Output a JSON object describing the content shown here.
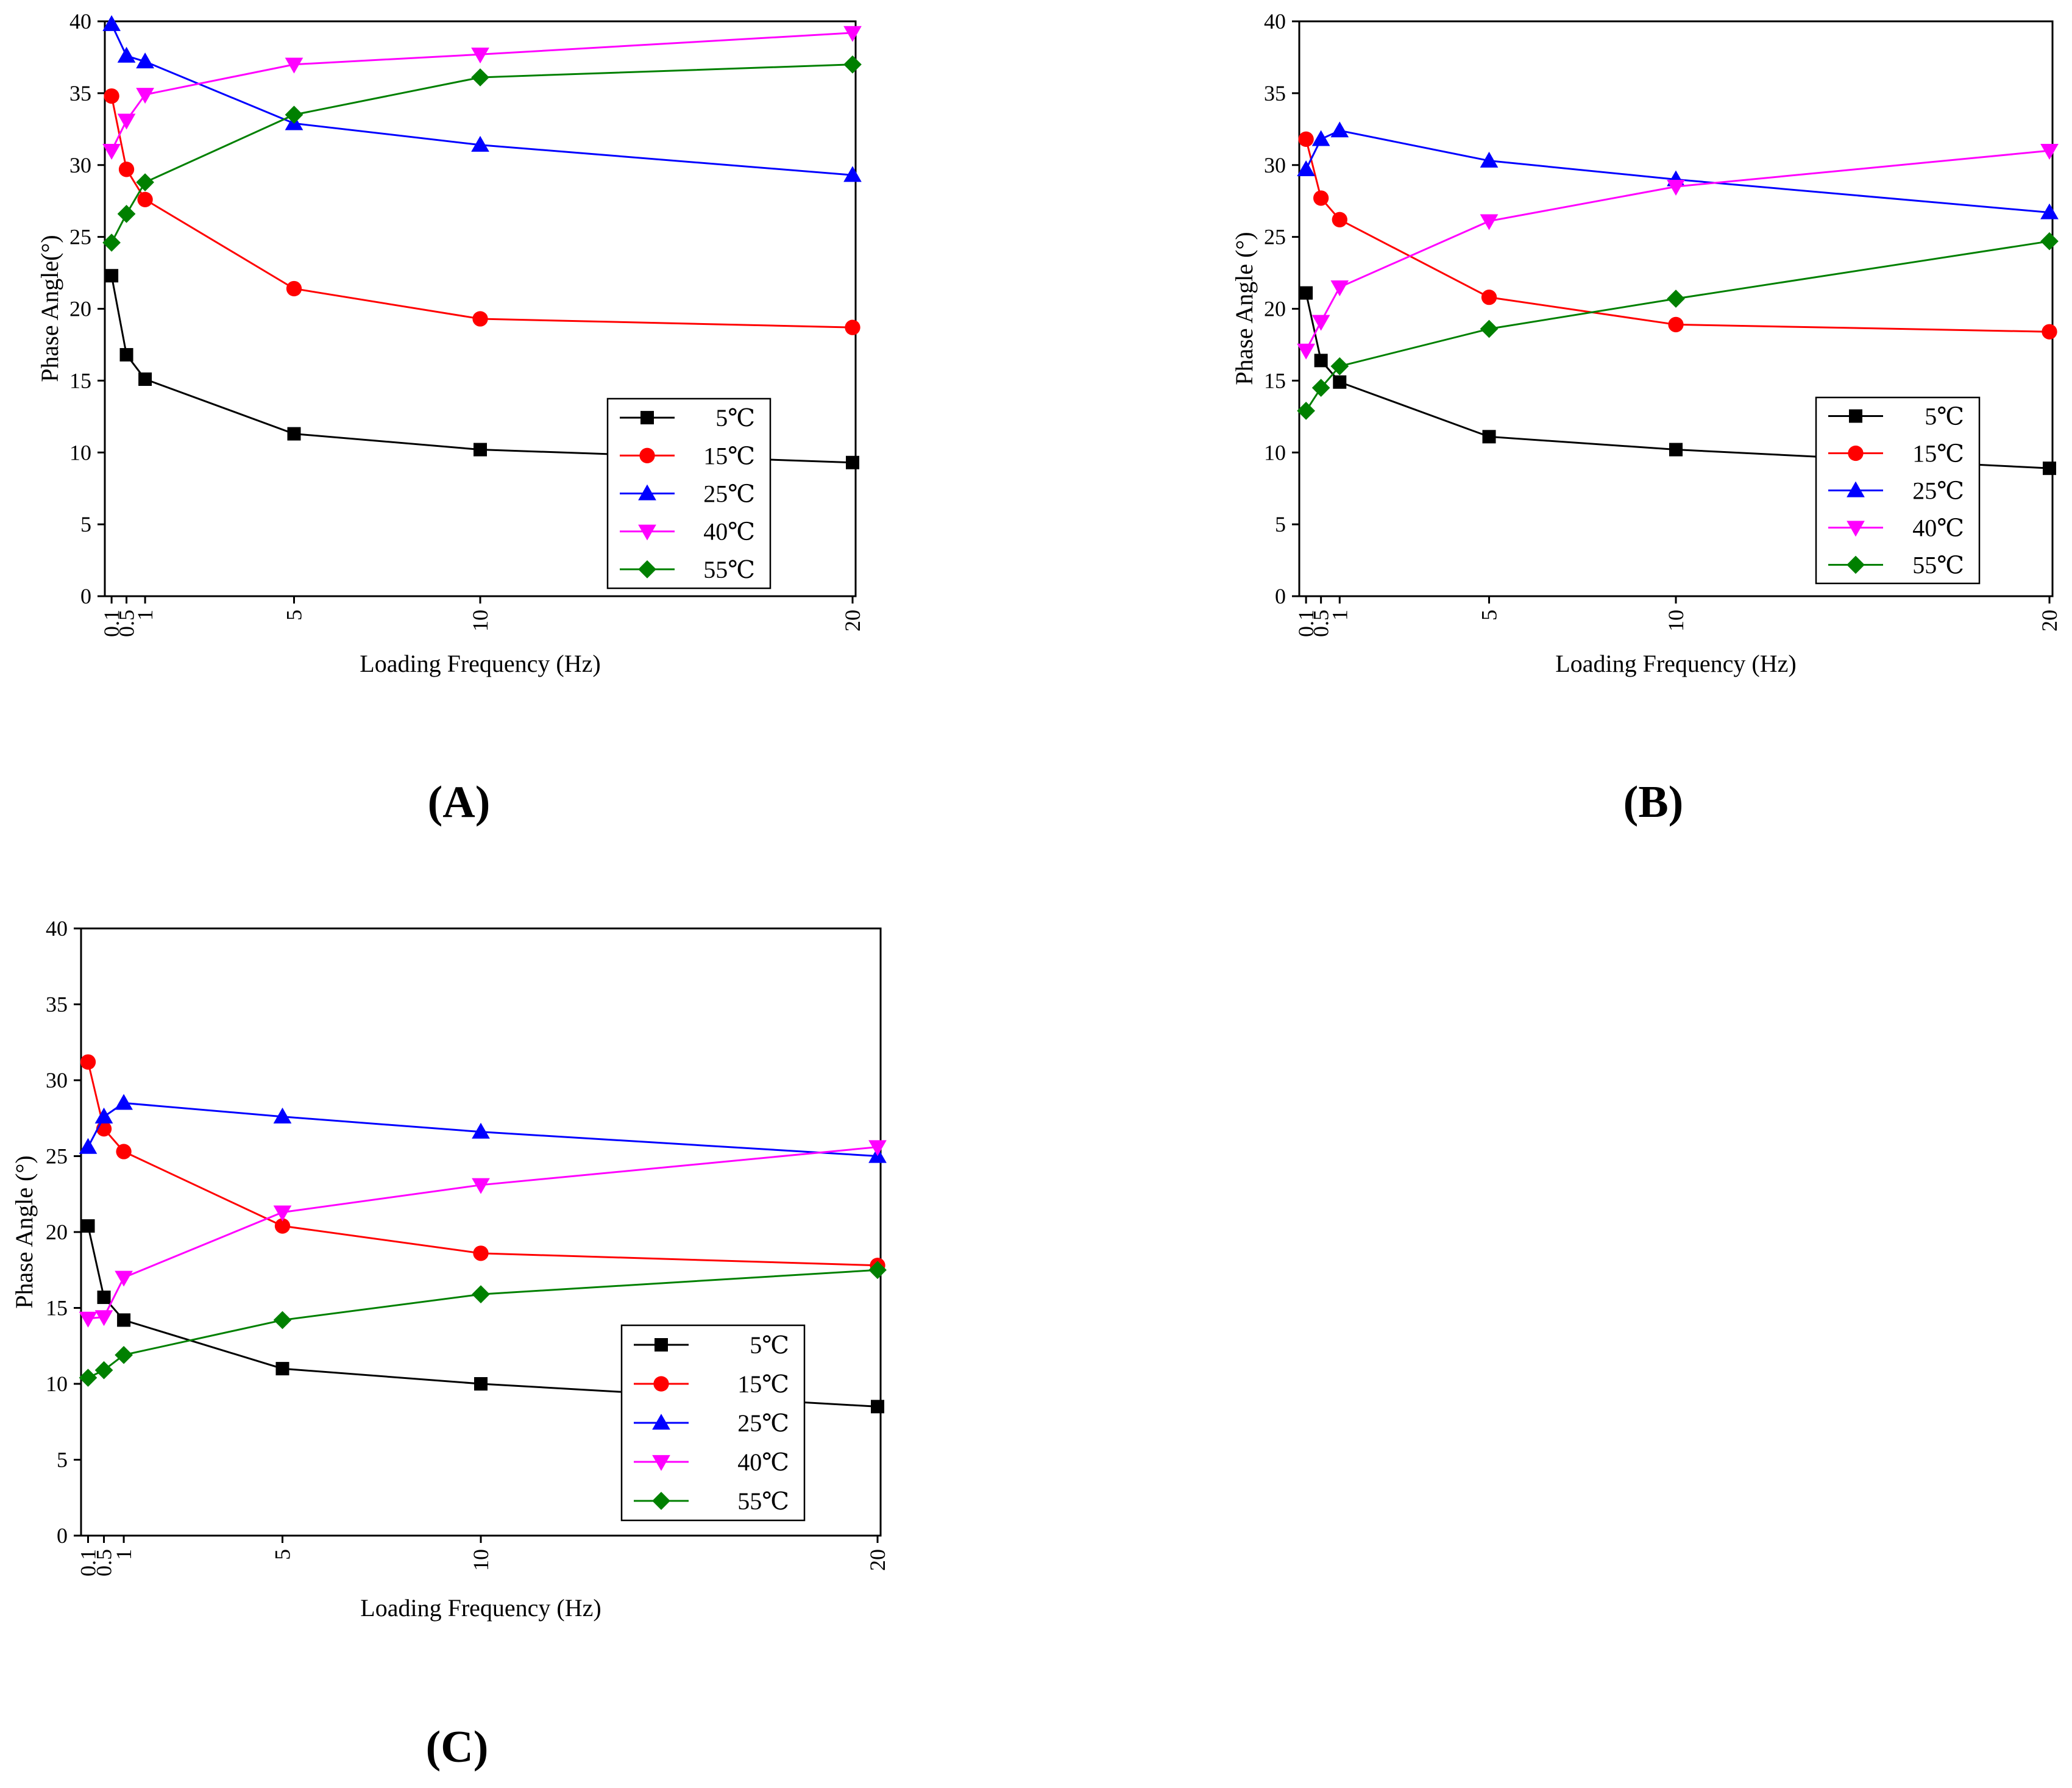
{
  "chart_data": [
    {
      "type": "line",
      "panel_label": "(A)",
      "xlabel": "Loading Frequency (Hz)",
      "ylabel": "Phase Angle(°)",
      "xlim": [
        0,
        20
      ],
      "ylim": [
        0,
        40
      ],
      "x_ticks": [
        0.1,
        0.5,
        1,
        5,
        10,
        20
      ],
      "x_tick_labels": [
        "0.1",
        "0.5",
        "1",
        "5",
        "10",
        "20"
      ],
      "y_ticks": [
        0,
        5,
        10,
        15,
        20,
        25,
        30,
        35,
        40
      ],
      "y_tick_labels": [
        "0",
        "5",
        "10",
        "15",
        "20",
        "25",
        "30",
        "35",
        "40"
      ],
      "x": [
        0.1,
        0.5,
        1,
        5,
        10,
        20
      ],
      "legend_position": "bottom-right",
      "series": [
        {
          "name": "5℃",
          "color": "#000000",
          "marker": "square",
          "values": [
            22.3,
            16.8,
            15.1,
            11.3,
            10.2,
            9.3
          ]
        },
        {
          "name": "15℃",
          "color": "#ff0000",
          "marker": "circle",
          "values": [
            34.8,
            29.7,
            27.6,
            21.4,
            19.3,
            18.7
          ]
        },
        {
          "name": "25℃",
          "color": "#0000ff",
          "marker": "triangle-up",
          "values": [
            39.8,
            37.6,
            37.2,
            32.9,
            31.4,
            29.3
          ]
        },
        {
          "name": "40℃",
          "color": "#ff00ff",
          "marker": "triangle-down",
          "values": [
            31.0,
            33.1,
            34.9,
            37.0,
            37.7,
            39.2
          ]
        },
        {
          "name": "55℃",
          "color": "#008000",
          "marker": "diamond",
          "values": [
            24.6,
            26.6,
            28.8,
            33.5,
            36.1,
            37.0
          ]
        }
      ]
    },
    {
      "type": "line",
      "panel_label": "(B)",
      "xlabel": "Loading Frequency (Hz)",
      "ylabel": "Phase Angle (°)",
      "xlim": [
        0,
        20
      ],
      "ylim": [
        0,
        40
      ],
      "x_ticks": [
        0.1,
        0.5,
        1,
        5,
        10,
        20
      ],
      "x_tick_labels": [
        "0.1",
        "0.5",
        "1",
        "5",
        "10",
        "20"
      ],
      "y_ticks": [
        0,
        5,
        10,
        15,
        20,
        25,
        30,
        35,
        40
      ],
      "y_tick_labels": [
        "0",
        "5",
        "10",
        "15",
        "20",
        "25",
        "30",
        "35",
        "40"
      ],
      "x": [
        0.1,
        0.5,
        1,
        5,
        10,
        20
      ],
      "legend_position": "bottom-right",
      "series": [
        {
          "name": "5℃",
          "color": "#000000",
          "marker": "square",
          "values": [
            21.1,
            16.4,
            14.9,
            11.1,
            10.2,
            8.9
          ]
        },
        {
          "name": "15℃",
          "color": "#ff0000",
          "marker": "circle",
          "values": [
            31.8,
            27.7,
            26.2,
            20.8,
            18.9,
            18.4
          ]
        },
        {
          "name": "25℃",
          "color": "#0000ff",
          "marker": "triangle-up",
          "values": [
            29.7,
            31.8,
            32.4,
            30.3,
            29.0,
            26.7
          ]
        },
        {
          "name": "40℃",
          "color": "#ff00ff",
          "marker": "triangle-down",
          "values": [
            17.1,
            19.1,
            21.5,
            26.1,
            28.5,
            31.0
          ]
        },
        {
          "name": "55℃",
          "color": "#008000",
          "marker": "diamond",
          "values": [
            12.9,
            14.5,
            16.0,
            18.6,
            20.7,
            24.7
          ]
        }
      ]
    },
    {
      "type": "line",
      "panel_label": "(C)",
      "xlabel": "Loading Frequency (Hz)",
      "ylabel": "Phase Angle (°)",
      "xlim": [
        0,
        20
      ],
      "ylim": [
        0,
        40
      ],
      "x_ticks": [
        0.1,
        0.5,
        1,
        5,
        10,
        20
      ],
      "x_tick_labels": [
        "0.1",
        "0.5",
        "1",
        "5",
        "10",
        "20"
      ],
      "y_ticks": [
        0,
        5,
        10,
        15,
        20,
        25,
        30,
        35,
        40
      ],
      "y_tick_labels": [
        "0",
        "5",
        "10",
        "15",
        "20",
        "25",
        "30",
        "35",
        "40"
      ],
      "x": [
        0.1,
        0.5,
        1,
        5,
        10,
        20
      ],
      "legend_position": "bottom-right",
      "series": [
        {
          "name": "5℃",
          "color": "#000000",
          "marker": "square",
          "values": [
            20.4,
            15.7,
            14.2,
            11.0,
            10.0,
            8.5
          ]
        },
        {
          "name": "15℃",
          "color": "#ff0000",
          "marker": "circle",
          "values": [
            31.2,
            26.8,
            25.3,
            20.4,
            18.6,
            17.8
          ]
        },
        {
          "name": "25℃",
          "color": "#0000ff",
          "marker": "triangle-up",
          "values": [
            25.6,
            27.6,
            28.5,
            27.6,
            26.6,
            25.0
          ]
        },
        {
          "name": "40℃",
          "color": "#ff00ff",
          "marker": "triangle-down",
          "values": [
            14.3,
            14.4,
            17.0,
            21.3,
            23.1,
            25.6
          ]
        },
        {
          "name": "55℃",
          "color": "#008000",
          "marker": "diamond",
          "values": [
            10.4,
            10.9,
            11.9,
            14.2,
            15.9,
            17.5
          ]
        }
      ]
    }
  ]
}
